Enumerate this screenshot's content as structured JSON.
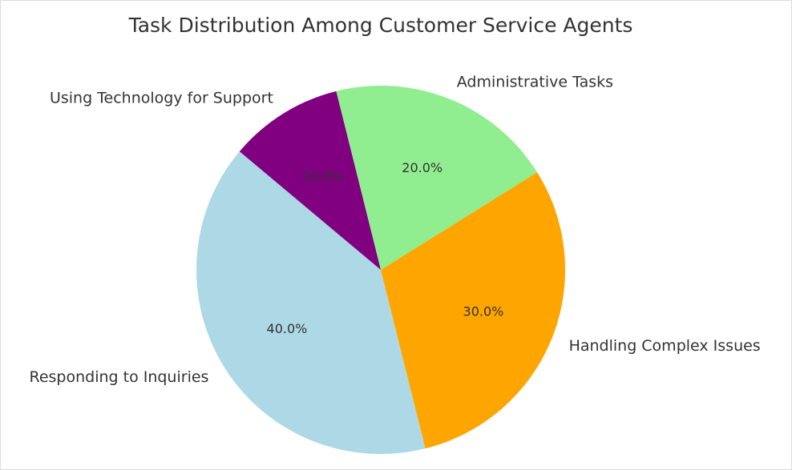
{
  "chart_data": {
    "type": "pie",
    "title": "Task Distribution Among Customer Service Agents",
    "labels": [
      "Responding to Inquiries",
      "Handling Complex Issues",
      "Administrative Tasks",
      "Using Technology for Support"
    ],
    "values": [
      40,
      30,
      20,
      10
    ],
    "percent_labels": [
      "40.0%",
      "30.0%",
      "20.0%",
      "10.0%"
    ],
    "colors": [
      "#ADD8E6",
      "#FFA500",
      "#90EE90",
      "#800080"
    ],
    "start_angle": 140,
    "direction": "counterclockwise"
  }
}
